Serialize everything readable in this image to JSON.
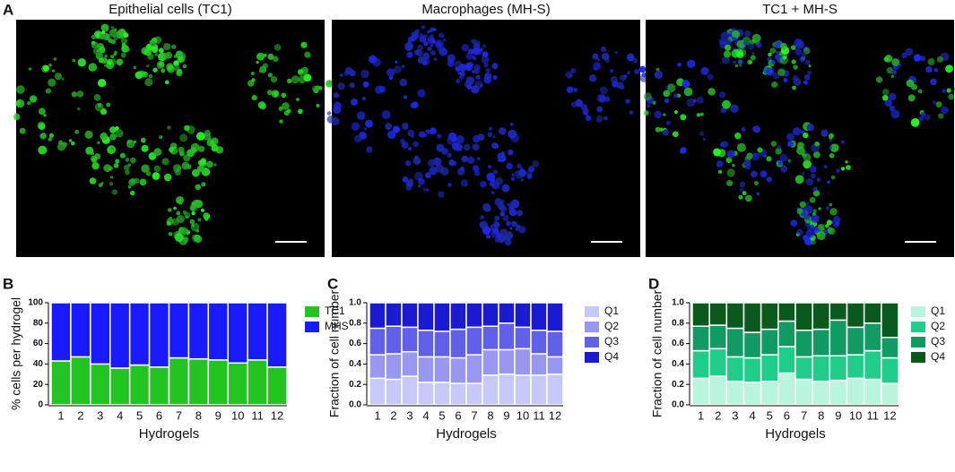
{
  "figure": {
    "letter": "A",
    "images": [
      {
        "title": "Epithelial cells (TC1)"
      },
      {
        "title": "Macrophages (MH-S)"
      },
      {
        "title": "TC1 + MH-S"
      }
    ]
  },
  "chart_data": [
    {
      "type": "bar",
      "stacked": true,
      "panel_label": "B",
      "ylabel": "% cells per hydrogel",
      "xlabel": "Hydrogels",
      "legend": "right",
      "categories": [
        "1",
        "2",
        "3",
        "4",
        "5",
        "6",
        "7",
        "8",
        "9",
        "10",
        "11",
        "12"
      ],
      "series": [
        {
          "name": "TC1",
          "color": "#22c422",
          "values": [
            43,
            47,
            40,
            36,
            39,
            37,
            46,
            45,
            44,
            41,
            44,
            37
          ]
        },
        {
          "name": "MHS",
          "color": "#1a1aff",
          "values": [
            57,
            53,
            60,
            64,
            61,
            63,
            54,
            55,
            56,
            59,
            56,
            63
          ]
        }
      ],
      "ylim": [
        0,
        100
      ],
      "yticks": [
        0,
        20,
        40,
        60,
        80,
        100
      ]
    },
    {
      "type": "bar",
      "stacked": true,
      "panel_label": "C",
      "ylabel": "Fraction of cell number",
      "xlabel": "Hydrogels",
      "legend": "right",
      "categories": [
        "1",
        "2",
        "3",
        "4",
        "5",
        "6",
        "7",
        "8",
        "9",
        "10",
        "11",
        "12"
      ],
      "series": [
        {
          "name": "Q1",
          "color": "#c8c8f8",
          "values": [
            0.26,
            0.25,
            0.28,
            0.22,
            0.22,
            0.21,
            0.21,
            0.29,
            0.3,
            0.29,
            0.29,
            0.3
          ]
        },
        {
          "name": "Q2",
          "color": "#9898f0",
          "values": [
            0.23,
            0.25,
            0.24,
            0.25,
            0.25,
            0.25,
            0.28,
            0.25,
            0.24,
            0.26,
            0.21,
            0.17
          ]
        },
        {
          "name": "Q3",
          "color": "#6060e8",
          "values": [
            0.26,
            0.27,
            0.24,
            0.26,
            0.25,
            0.28,
            0.27,
            0.23,
            0.26,
            0.21,
            0.23,
            0.25
          ]
        },
        {
          "name": "Q4",
          "color": "#1a1ad0",
          "values": [
            0.25,
            0.23,
            0.24,
            0.27,
            0.28,
            0.26,
            0.24,
            0.23,
            0.2,
            0.24,
            0.27,
            0.28
          ]
        }
      ],
      "ylim": [
        0,
        1
      ],
      "yticks": [
        {
          "value": 0,
          "label": "0.0"
        },
        {
          "value": 0.2,
          "label": "0.2"
        },
        {
          "value": 0.4,
          "label": "0.4"
        },
        {
          "value": 0.6,
          "label": "0.6"
        },
        {
          "value": 0.8,
          "label": "0.8"
        },
        {
          "value": 1,
          "label": "1.0"
        }
      ]
    },
    {
      "type": "bar",
      "stacked": true,
      "panel_label": "D",
      "ylabel": "Fraction of cell number",
      "xlabel": "Hydrogels",
      "legend": "right",
      "categories": [
        "1",
        "2",
        "3",
        "4",
        "5",
        "6",
        "7",
        "8",
        "9",
        "10",
        "11",
        "12"
      ],
      "series": [
        {
          "name": "Q1",
          "color": "#b8f5dc",
          "values": [
            0.26,
            0.28,
            0.23,
            0.22,
            0.23,
            0.31,
            0.25,
            0.23,
            0.24,
            0.26,
            0.25,
            0.21
          ]
        },
        {
          "name": "Q2",
          "color": "#1fcc8a",
          "values": [
            0.27,
            0.27,
            0.24,
            0.24,
            0.26,
            0.26,
            0.22,
            0.25,
            0.24,
            0.23,
            0.28,
            0.25
          ]
        },
        {
          "name": "Q3",
          "color": "#129a64",
          "values": [
            0.24,
            0.23,
            0.28,
            0.25,
            0.25,
            0.25,
            0.26,
            0.26,
            0.35,
            0.27,
            0.27,
            0.2
          ]
        },
        {
          "name": "Q4",
          "color": "#0a5a1e",
          "values": [
            0.23,
            0.22,
            0.25,
            0.29,
            0.26,
            0.18,
            0.27,
            0.26,
            0.17,
            0.24,
            0.2,
            0.34
          ]
        }
      ],
      "ylim": [
        0,
        1
      ],
      "yticks": [
        {
          "value": 0,
          "label": "0.0"
        },
        {
          "value": 0.2,
          "label": "0.2"
        },
        {
          "value": 0.4,
          "label": "0.4"
        },
        {
          "value": 0.6,
          "label": "0.6"
        },
        {
          "value": 0.8,
          "label": "0.8"
        },
        {
          "value": 1,
          "label": "1.0"
        }
      ]
    }
  ]
}
